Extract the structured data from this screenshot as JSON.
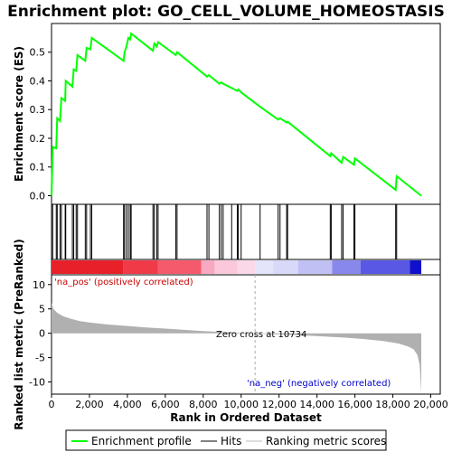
{
  "chart_data": {
    "type": "line",
    "title": "Enrichment plot: GO_CELL_VOLUME_HOMEOSTASIS",
    "top_panel": {
      "ylabel": "Enrichment score (ES)",
      "ylim": [
        -0.03,
        0.6
      ],
      "yticks": [
        "0.0",
        "0.1",
        "0.2",
        "0.3",
        "0.4",
        "0.5"
      ],
      "ytick_values": [
        0.0,
        0.1,
        0.2,
        0.3,
        0.4,
        0.5
      ],
      "color": "#00ff00",
      "es_points": [
        [
          0,
          0
        ],
        [
          60,
          0.17
        ],
        [
          250,
          0.165
        ],
        [
          300,
          0.27
        ],
        [
          450,
          0.26
        ],
        [
          520,
          0.34
        ],
        [
          720,
          0.33
        ],
        [
          750,
          0.4
        ],
        [
          1100,
          0.38
        ],
        [
          1170,
          0.44
        ],
        [
          1300,
          0.435
        ],
        [
          1370,
          0.49
        ],
        [
          1780,
          0.47
        ],
        [
          1850,
          0.515
        ],
        [
          2050,
          0.51
        ],
        [
          2120,
          0.55
        ],
        [
          3800,
          0.47
        ],
        [
          3850,
          0.5
        ],
        [
          3950,
          0.52
        ],
        [
          4050,
          0.55
        ],
        [
          4150,
          0.545
        ],
        [
          4200,
          0.565
        ],
        [
          5350,
          0.505
        ],
        [
          5420,
          0.53
        ],
        [
          5550,
          0.52
        ],
        [
          5620,
          0.535
        ],
        [
          6550,
          0.49
        ],
        [
          6620,
          0.5
        ],
        [
          8200,
          0.415
        ],
        [
          8300,
          0.42
        ],
        [
          8850,
          0.39
        ],
        [
          8950,
          0.395
        ],
        [
          9050,
          0.39
        ],
        [
          9500,
          0.375
        ],
        [
          9800,
          0.365
        ],
        [
          9850,
          0.37
        ],
        [
          10000,
          0.36
        ],
        [
          11000,
          0.31
        ],
        [
          11950,
          0.265
        ],
        [
          12050,
          0.27
        ],
        [
          12400,
          0.255
        ],
        [
          12450,
          0.258
        ],
        [
          14700,
          0.138
        ],
        [
          14750,
          0.148
        ],
        [
          15300,
          0.115
        ],
        [
          15380,
          0.135
        ],
        [
          15950,
          0.108
        ],
        [
          16000,
          0.13
        ],
        [
          18150,
          0.02
        ],
        [
          18200,
          0.068
        ],
        [
          19500,
          0
        ]
      ]
    },
    "hits": [
      0,
      60,
      250,
      300,
      450,
      520,
      720,
      750,
      1100,
      1170,
      1300,
      1370,
      1780,
      1850,
      2050,
      2120,
      3800,
      3850,
      3950,
      4050,
      4150,
      4200,
      5350,
      5420,
      5550,
      5620,
      6550,
      6620,
      8200,
      8300,
      8850,
      8950,
      9050,
      9500,
      9800,
      9850,
      10000,
      11000,
      11950,
      12050,
      12400,
      12450,
      14700,
      14750,
      15300,
      15380,
      15950,
      16000,
      18150,
      18200
    ],
    "heat_bar": {
      "segments": [
        {
          "from": 0,
          "to": 3800,
          "color": "#e8202a"
        },
        {
          "from": 3800,
          "to": 5600,
          "color": "#f03a48"
        },
        {
          "from": 5600,
          "to": 7900,
          "color": "#f45a6c"
        },
        {
          "from": 7900,
          "to": 8600,
          "color": "#f8a8c0"
        },
        {
          "from": 8600,
          "to": 9800,
          "color": "#fac8da"
        },
        {
          "from": 9800,
          "to": 10734,
          "color": "#fbd8e8"
        },
        {
          "from": 10734,
          "to": 11700,
          "color": "#e4e4fa"
        },
        {
          "from": 11700,
          "to": 13000,
          "color": "#d8d8f8"
        },
        {
          "from": 13000,
          "to": 14800,
          "color": "#c0c0f4"
        },
        {
          "from": 14800,
          "to": 16300,
          "color": "#8888ec"
        },
        {
          "from": 16300,
          "to": 18900,
          "color": "#5858e4"
        },
        {
          "from": 18900,
          "to": 19500,
          "color": "#1010cc"
        }
      ]
    },
    "bottom_panel": {
      "ylabel": "Ranked list metric (PreRanked)",
      "ylim": [
        -12.5,
        12
      ],
      "yticks": [
        "10",
        "5",
        "0",
        "-5",
        "-10"
      ],
      "ytick_values": [
        10,
        5,
        0,
        -5,
        -10
      ],
      "metric_points": [
        [
          0,
          6.2
        ],
        [
          100,
          5.0
        ],
        [
          300,
          4.2
        ],
        [
          600,
          3.5
        ],
        [
          1000,
          3.0
        ],
        [
          1500,
          2.5
        ],
        [
          2000,
          2.2
        ],
        [
          3000,
          1.8
        ],
        [
          4000,
          1.5
        ],
        [
          5000,
          1.2
        ],
        [
          6000,
          0.95
        ],
        [
          7000,
          0.7
        ],
        [
          8000,
          0.45
        ],
        [
          9000,
          0.25
        ],
        [
          10000,
          0.1
        ],
        [
          10734,
          0
        ],
        [
          11500,
          -0.15
        ],
        [
          12500,
          -0.3
        ],
        [
          13500,
          -0.5
        ],
        [
          14500,
          -0.7
        ],
        [
          15500,
          -0.9
        ],
        [
          16500,
          -1.2
        ],
        [
          17500,
          -1.6
        ],
        [
          18300,
          -2.1
        ],
        [
          18800,
          -2.7
        ],
        [
          19100,
          -3.3
        ],
        [
          19300,
          -4.5
        ],
        [
          19420,
          -6.5
        ],
        [
          19500,
          -12.2
        ]
      ],
      "zero_cross": 10734,
      "zero_cross_label": "Zero cross at 10734",
      "pos_label": "'na_pos' (positively correlated)",
      "neg_label": "'na_neg' (negatively correlated)",
      "pos_color": "#cc0000",
      "neg_color": "#0000cc"
    },
    "xlabel": "Rank in Ordered Dataset",
    "xlim": [
      0,
      20500
    ],
    "xticks": [
      "0",
      "2,000",
      "4,000",
      "6,000",
      "8,000",
      "10,000",
      "12,000",
      "14,000",
      "16,000",
      "18,000",
      "20,000"
    ],
    "xtick_values": [
      0,
      2000,
      4000,
      6000,
      8000,
      10000,
      12000,
      14000,
      16000,
      18000,
      20000
    ],
    "legend": [
      {
        "label": "Enrichment profile",
        "color": "#00ff00"
      },
      {
        "label": "Hits",
        "color": "#000000"
      },
      {
        "label": "Ranking metric scores",
        "color": "#bbbbbb"
      }
    ]
  }
}
